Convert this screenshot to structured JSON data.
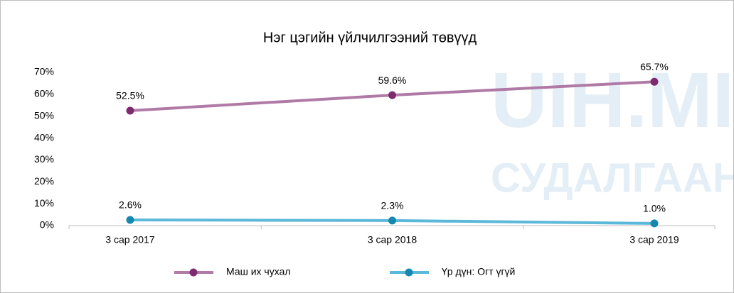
{
  "chart_data": {
    "type": "line",
    "title": "Нэг цэгийн үйлчилгээний төвүүд",
    "watermark": [
      "UIH.MI",
      "СУДАЛГААНЫ С"
    ],
    "categories": [
      "3 сар 2017",
      "3 сар 2018",
      "3 сар 2019"
    ],
    "series": [
      {
        "name": "Маш их чухал",
        "color": "#b07aa6",
        "marker_color": "#7d2a6e",
        "values": [
          52.5,
          59.6,
          65.7
        ],
        "value_labels": [
          "52.5%",
          "59.6%",
          "65.7%"
        ]
      },
      {
        "name": "Үр дүн: Огт үгүй",
        "color": "#5cb8d9",
        "marker_color": "#1688b0",
        "values": [
          2.6,
          2.3,
          1.0
        ],
        "value_labels": [
          "2.6%",
          "2.3%",
          "1.0%"
        ]
      }
    ],
    "ylim": [
      0,
      70
    ],
    "yticks": [
      {
        "value": 0,
        "label": "0%"
      },
      {
        "value": 10,
        "label": "10%"
      },
      {
        "value": 20,
        "label": "20%"
      },
      {
        "value": 30,
        "label": "30%"
      },
      {
        "value": 40,
        "label": "40%"
      },
      {
        "value": 50,
        "label": "50%"
      },
      {
        "value": 60,
        "label": "60%"
      },
      {
        "value": 70,
        "label": "70%"
      }
    ],
    "grid": false,
    "legend": "bottom"
  }
}
